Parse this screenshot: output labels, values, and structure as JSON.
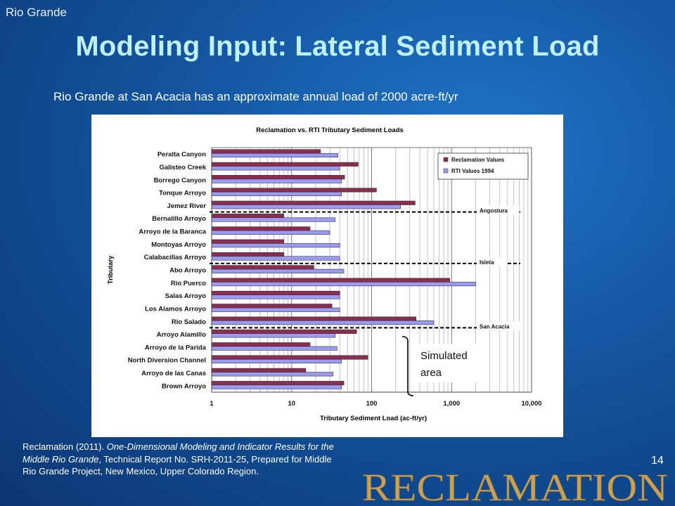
{
  "slide": {
    "corner_label": "Rio Grande",
    "title": "Modeling Input: Lateral Sediment Load",
    "subtitle": "Rio Grande at San Acacia has an approximate annual load of 2000 acre-ft/yr",
    "page_number": "14",
    "logo_text": "RECLAMATION",
    "citation": {
      "part1": "Reclamation (2011). ",
      "italic": "One-Dimensional Modeling and Indicator Results for the Middle Rio Grande",
      "part2": ", Technical Report No. SRH-2011-25, Prepared for Middle Rio Grande Project, New Mexico, Upper Colorado Region."
    },
    "callout": {
      "line1": "Simulated",
      "line2": "area"
    }
  },
  "colors": {
    "reclamation": "#8b2c50",
    "rti": "#9b9bf5",
    "title": "#bff0ff"
  },
  "chart_data": {
    "type": "bar",
    "orientation": "horizontal",
    "title": "Reclamation vs. RTI Tributary Sediment Loads",
    "xlabel": "Tributary Sediment Load (ac-ft/yr)",
    "ylabel": "Tributary",
    "xscale": "log",
    "xlim": [
      1,
      10000
    ],
    "xticks": [
      1,
      10,
      100,
      1000,
      10000
    ],
    "xtick_labels": [
      "1",
      "10",
      "100",
      "1,000",
      "10,000"
    ],
    "grid": true,
    "legend_position": "top-right",
    "categories": [
      "Peralta Canyon",
      "Galisteo Creek",
      "Borrego Canyon",
      "Tonque Arroyo",
      "Jemez River",
      "Bernalillo Arroyo",
      "Arroyo de la Baranca",
      "Montoyas Arroyo",
      "Calabacillas Arroyo",
      "Abo Arroyo",
      "Rio Puerco",
      "Salas Arroyo",
      "Los Alamos Arroyo",
      "Rio Salado",
      "Arroyo Alamillo",
      "Arroyo de la Parida",
      "North Diversion Channel",
      "Arroyo de las Canas",
      "Brown Arroyo"
    ],
    "series": [
      {
        "name": "Reclamation Values",
        "values": [
          23,
          68,
          46,
          115,
          350,
          8,
          17,
          8,
          8,
          19,
          950,
          40,
          32,
          360,
          65,
          17,
          90,
          15,
          45
        ]
      },
      {
        "name": "RTI Values 1994",
        "values": [
          38,
          40,
          42,
          42,
          230,
          35,
          30,
          40,
          40,
          45,
          2000,
          40,
          40,
          600,
          35,
          37,
          42,
          33,
          42
        ]
      }
    ],
    "annotations": [
      {
        "label": "Angostura",
        "after_category": "Jemez River"
      },
      {
        "label": "Isleta",
        "after_category": "Calabacillas Arroyo"
      },
      {
        "label": "San Acacia",
        "after_category": "Rio Salado"
      }
    ]
  }
}
